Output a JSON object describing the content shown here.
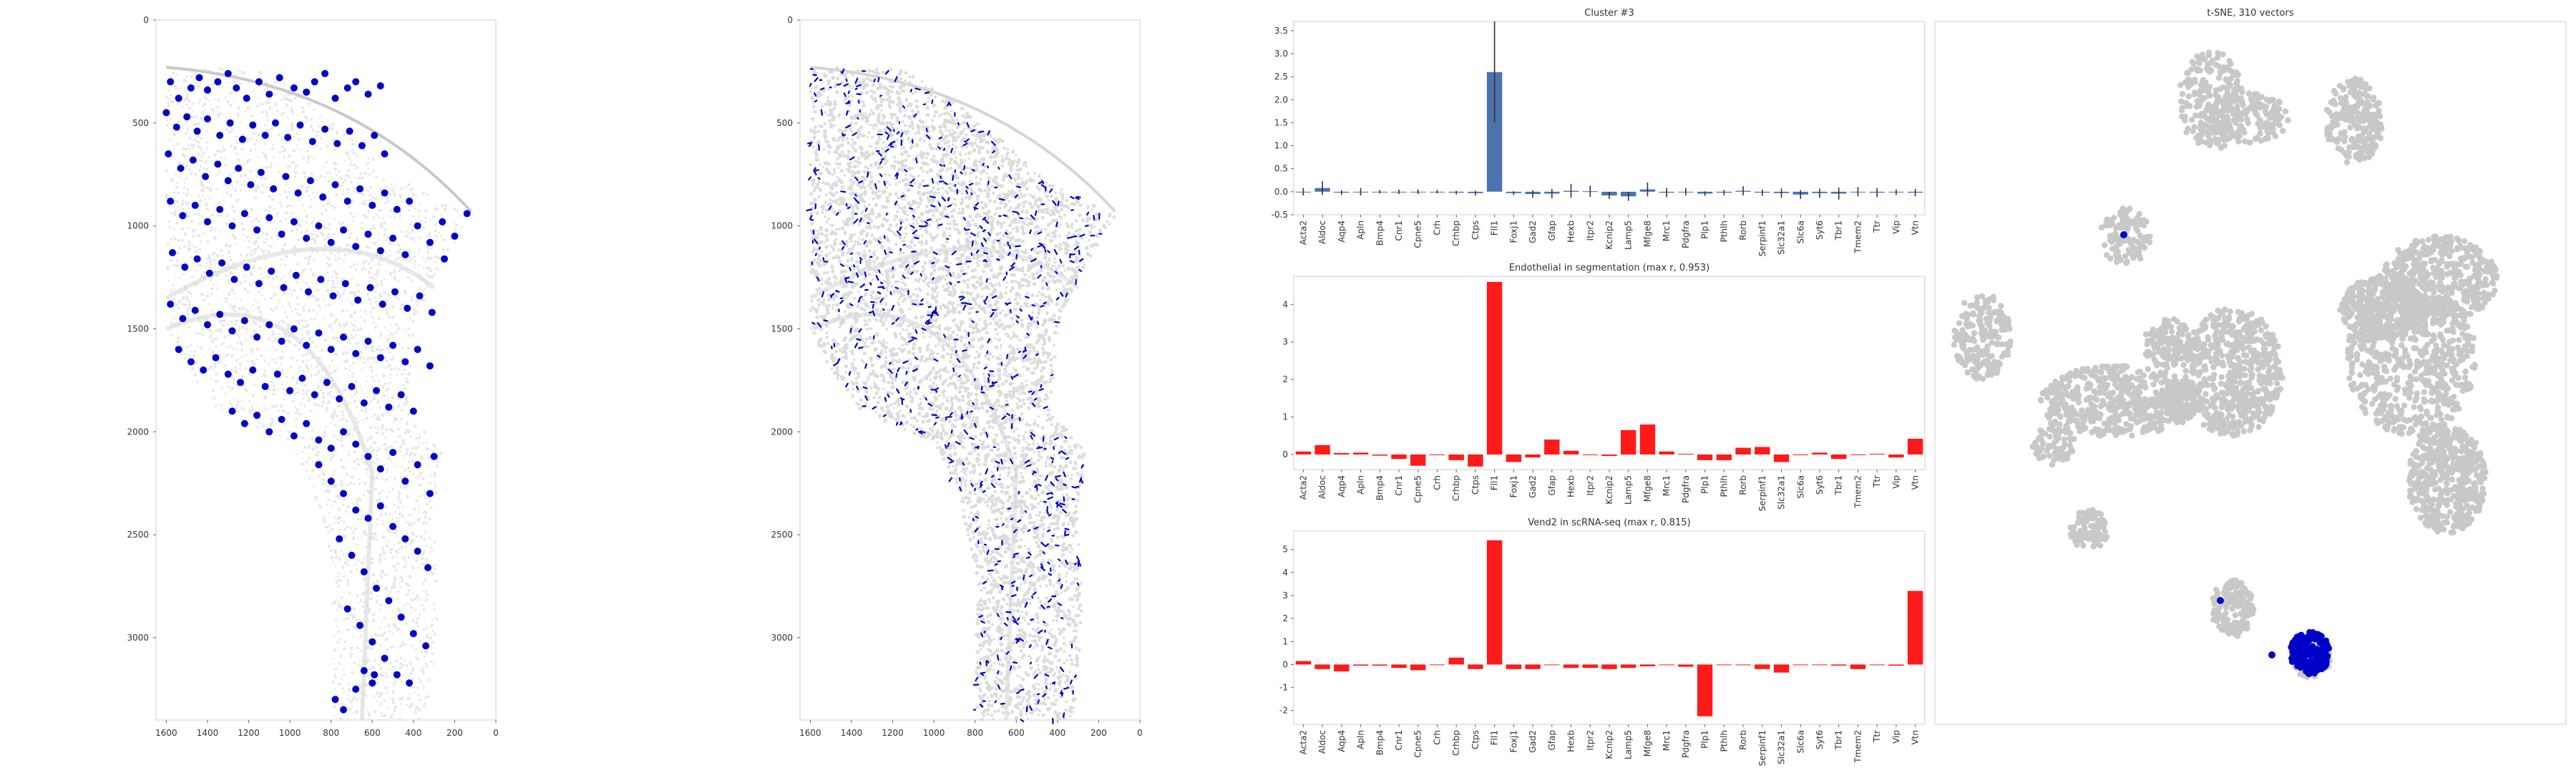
{
  "genes": [
    "Acta2",
    "Aldoc",
    "Aqp4",
    "Apln",
    "Bmp4",
    "Cnr1",
    "Cpne5",
    "Crh",
    "Crhbp",
    "Ctps",
    "Fll1",
    "Foxj1",
    "Gad2",
    "Gfap",
    "Hexb",
    "Itpr2",
    "Kcnip2",
    "Lamp5",
    "Mfge8",
    "Mrc1",
    "Pdgfra",
    "Plp1",
    "Pthlh",
    "Rorb",
    "Serpinf1",
    "Slc32a1",
    "Slc6a",
    "Syt6",
    "Tbr1",
    "Tmem2",
    "Ttr",
    "Vip",
    "Vtn"
  ],
  "chart_data": [
    {
      "type": "scatter",
      "panel": "spatial-cluster",
      "title": "",
      "xticks": [
        "1600",
        "1400",
        "1200",
        "1000",
        "800",
        "600",
        "400",
        "200",
        "0"
      ],
      "yticks": [
        "0",
        "500",
        "1000",
        "1500",
        "2000",
        "2500",
        "3000"
      ],
      "xlim": [
        1650,
        0
      ],
      "ylim": [
        3400,
        0
      ],
      "highlight_color": "#0000c8",
      "background_color": "#e4e4e4",
      "highlight_points": [
        [
          1580,
          300
        ],
        [
          1540,
          380
        ],
        [
          1480,
          330
        ],
        [
          1440,
          280
        ],
        [
          1400,
          340
        ],
        [
          1350,
          300
        ],
        [
          1300,
          260
        ],
        [
          1260,
          330
        ],
        [
          1210,
          380
        ],
        [
          1150,
          300
        ],
        [
          1100,
          360
        ],
        [
          1050,
          280
        ],
        [
          980,
          330
        ],
        [
          920,
          350
        ],
        [
          880,
          300
        ],
        [
          830,
          260
        ],
        [
          780,
          380
        ],
        [
          720,
          330
        ],
        [
          680,
          300
        ],
        [
          620,
          360
        ],
        [
          560,
          320
        ],
        [
          1600,
          450
        ],
        [
          1550,
          520
        ],
        [
          1500,
          470
        ],
        [
          1450,
          540
        ],
        [
          1400,
          480
        ],
        [
          1340,
          560
        ],
        [
          1290,
          500
        ],
        [
          1230,
          580
        ],
        [
          1180,
          510
        ],
        [
          1120,
          560
        ],
        [
          1070,
          500
        ],
        [
          1010,
          570
        ],
        [
          950,
          510
        ],
        [
          890,
          590
        ],
        [
          830,
          530
        ],
        [
          770,
          600
        ],
        [
          710,
          540
        ],
        [
          650,
          610
        ],
        [
          590,
          560
        ],
        [
          540,
          650
        ],
        [
          1590,
          650
        ],
        [
          1530,
          720
        ],
        [
          1470,
          680
        ],
        [
          1410,
          760
        ],
        [
          1350,
          700
        ],
        [
          1300,
          780
        ],
        [
          1250,
          720
        ],
        [
          1190,
          800
        ],
        [
          1140,
          740
        ],
        [
          1080,
          820
        ],
        [
          1020,
          760
        ],
        [
          960,
          840
        ],
        [
          900,
          780
        ],
        [
          840,
          860
        ],
        [
          780,
          800
        ],
        [
          720,
          880
        ],
        [
          660,
          820
        ],
        [
          600,
          900
        ],
        [
          540,
          840
        ],
        [
          480,
          920
        ],
        [
          420,
          880
        ],
        [
          1580,
          880
        ],
        [
          1520,
          950
        ],
        [
          1460,
          900
        ],
        [
          1400,
          980
        ],
        [
          1340,
          920
        ],
        [
          1280,
          1000
        ],
        [
          1220,
          940
        ],
        [
          1160,
          1020
        ],
        [
          1100,
          960
        ],
        [
          1040,
          1040
        ],
        [
          980,
          980
        ],
        [
          920,
          1060
        ],
        [
          860,
          1000
        ],
        [
          800,
          1080
        ],
        [
          740,
          1020
        ],
        [
          680,
          1100
        ],
        [
          620,
          1040
        ],
        [
          560,
          1120
        ],
        [
          500,
          1060
        ],
        [
          440,
          1140
        ],
        [
          380,
          1000
        ],
        [
          320,
          1080
        ],
        [
          260,
          980
        ],
        [
          200,
          1050
        ],
        [
          140,
          940
        ],
        [
          1570,
          1130
        ],
        [
          1510,
          1200
        ],
        [
          1450,
          1160
        ],
        [
          1390,
          1230
        ],
        [
          1330,
          1180
        ],
        [
          1270,
          1260
        ],
        [
          1210,
          1200
        ],
        [
          1150,
          1280
        ],
        [
          1090,
          1220
        ],
        [
          1030,
          1300
        ],
        [
          970,
          1240
        ],
        [
          910,
          1320
        ],
        [
          850,
          1260
        ],
        [
          790,
          1340
        ],
        [
          730,
          1280
        ],
        [
          670,
          1360
        ],
        [
          610,
          1300
        ],
        [
          550,
          1380
        ],
        [
          490,
          1320
        ],
        [
          430,
          1400
        ],
        [
          370,
          1340
        ],
        [
          310,
          1420
        ],
        [
          250,
          1160
        ],
        [
          1580,
          1380
        ],
        [
          1520,
          1450
        ],
        [
          1460,
          1410
        ],
        [
          1400,
          1480
        ],
        [
          1340,
          1430
        ],
        [
          1280,
          1510
        ],
        [
          1220,
          1460
        ],
        [
          1160,
          1540
        ],
        [
          1100,
          1480
        ],
        [
          1040,
          1560
        ],
        [
          980,
          1500
        ],
        [
          920,
          1580
        ],
        [
          860,
          1520
        ],
        [
          800,
          1600
        ],
        [
          740,
          1540
        ],
        [
          680,
          1620
        ],
        [
          620,
          1560
        ],
        [
          560,
          1640
        ],
        [
          500,
          1580
        ],
        [
          440,
          1660
        ],
        [
          380,
          1600
        ],
        [
          320,
          1680
        ],
        [
          1540,
          1600
        ],
        [
          1480,
          1660
        ],
        [
          1420,
          1700
        ],
        [
          1360,
          1640
        ],
        [
          1300,
          1720
        ],
        [
          1240,
          1760
        ],
        [
          1180,
          1700
        ],
        [
          1120,
          1780
        ],
        [
          1060,
          1720
        ],
        [
          1000,
          1800
        ],
        [
          940,
          1740
        ],
        [
          880,
          1820
        ],
        [
          820,
          1760
        ],
        [
          760,
          1840
        ],
        [
          700,
          1780
        ],
        [
          640,
          1860
        ],
        [
          580,
          1800
        ],
        [
          520,
          1880
        ],
        [
          460,
          1820
        ],
        [
          400,
          1900
        ],
        [
          1280,
          1900
        ],
        [
          1220,
          1960
        ],
        [
          1160,
          1920
        ],
        [
          1100,
          2000
        ],
        [
          1040,
          1940
        ],
        [
          980,
          2020
        ],
        [
          920,
          1960
        ],
        [
          860,
          2040
        ],
        [
          800,
          2080
        ],
        [
          740,
          2000
        ],
        [
          680,
          2060
        ],
        [
          620,
          2120
        ],
        [
          560,
          2180
        ],
        [
          500,
          2100
        ],
        [
          440,
          2240
        ],
        [
          380,
          2160
        ],
        [
          320,
          2300
        ],
        [
          300,
          2120
        ],
        [
          860,
          2160
        ],
        [
          800,
          2240
        ],
        [
          740,
          2300
        ],
        [
          680,
          2380
        ],
        [
          620,
          2420
        ],
        [
          560,
          2360
        ],
        [
          500,
          2460
        ],
        [
          440,
          2520
        ],
        [
          380,
          2580
        ],
        [
          330,
          2660
        ],
        [
          760,
          2520
        ],
        [
          700,
          2600
        ],
        [
          640,
          2680
        ],
        [
          580,
          2760
        ],
        [
          520,
          2820
        ],
        [
          460,
          2900
        ],
        [
          400,
          2980
        ],
        [
          340,
          3040
        ],
        [
          720,
          2860
        ],
        [
          660,
          2940
        ],
        [
          600,
          3020
        ],
        [
          540,
          3100
        ],
        [
          480,
          3180
        ],
        [
          420,
          3220
        ],
        [
          640,
          3160
        ],
        [
          590,
          3180
        ],
        [
          780,
          3300
        ],
        [
          740,
          3350
        ],
        [
          680,
          3250
        ],
        [
          600,
          3220
        ]
      ]
    },
    {
      "type": "scatter",
      "panel": "spatial-segmentation",
      "title": "",
      "xticks": [
        "1600",
        "1400",
        "1200",
        "1000",
        "800",
        "600",
        "400",
        "200",
        "0"
      ],
      "yticks": [
        "0",
        "500",
        "1000",
        "1500",
        "2000",
        "2500",
        "3000"
      ],
      "xlim": [
        1650,
        0
      ],
      "ylim": [
        3400,
        0
      ],
      "highlight_color": "#0000c8",
      "background_color": "#e4e4e4"
    },
    {
      "type": "bar",
      "panel": "bar-cluster",
      "title": "Cluster #3",
      "ylim": [
        -0.5,
        3.7
      ],
      "yticks": [
        "-0.5",
        "0.0",
        "0.5",
        "1.0",
        "1.5",
        "2.0",
        "2.5",
        "3.0",
        "3.5"
      ],
      "color": "#4c72b0",
      "values": [
        0,
        0.08,
        -0.02,
        0,
        0,
        0,
        0,
        0,
        -0.02,
        -0.03,
        2.6,
        -0.03,
        -0.05,
        -0.04,
        0.02,
        0.01,
        -0.08,
        -0.1,
        0.05,
        -0.02,
        0,
        -0.04,
        -0.02,
        0.02,
        -0.02,
        -0.03,
        -0.06,
        -0.03,
        -0.04,
        0,
        -0.02,
        -0.01,
        -0.02
      ],
      "errors": [
        0.08,
        0.15,
        0.05,
        0.08,
        0.04,
        0.05,
        0.05,
        0.04,
        0.04,
        0.05,
        1.1,
        0.04,
        0.08,
        0.1,
        0.15,
        0.12,
        0.08,
        0.1,
        0.15,
        0.1,
        0.08,
        0.05,
        0.06,
        0.1,
        0.07,
        0.1,
        0.1,
        0.1,
        0.13,
        0.1,
        0.1,
        0.06,
        0.08
      ]
    },
    {
      "type": "bar",
      "panel": "bar-segmentation",
      "title": "Endothelial in segmentation (max r, 0.953)",
      "ylim": [
        -0.4,
        4.75
      ],
      "yticks": [
        "0",
        "1",
        "2",
        "3",
        "4"
      ],
      "color": "#ff1a1a",
      "values": [
        0.08,
        0.25,
        0.04,
        0.05,
        -0.03,
        -0.12,
        -0.3,
        -0.02,
        -0.15,
        -0.32,
        4.6,
        -0.2,
        -0.08,
        0.4,
        0.1,
        0,
        -0.04,
        0.65,
        0.8,
        0.08,
        0.02,
        -0.15,
        -0.15,
        0.18,
        0.2,
        -0.2,
        -0.02,
        0.05,
        -0.12,
        0,
        0.02,
        -0.08,
        0.42
      ]
    },
    {
      "type": "bar",
      "panel": "bar-scrnaseq",
      "title": "Vend2 in scRNA-seq (max r, 0.815)",
      "ylim": [
        -2.6,
        5.8
      ],
      "yticks": [
        "-2",
        "-1",
        "0",
        "1",
        "2",
        "3",
        "4",
        "5"
      ],
      "color": "#ff1a1a",
      "values": [
        0.15,
        -0.2,
        -0.3,
        -0.05,
        -0.05,
        -0.15,
        -0.25,
        0,
        0.3,
        -0.2,
        5.4,
        -0.2,
        -0.2,
        0,
        -0.15,
        -0.15,
        -0.2,
        -0.15,
        -0.08,
        0,
        -0.1,
        -2.25,
        0,
        0,
        -0.2,
        -0.35,
        0,
        0,
        -0.05,
        -0.2,
        0,
        -0.05,
        3.2
      ]
    },
    {
      "type": "scatter",
      "panel": "tsne",
      "title": "t-SNE, 310 vectors",
      "grey_color": "#c8c8c8",
      "highlight_color": "#0000c8"
    }
  ]
}
